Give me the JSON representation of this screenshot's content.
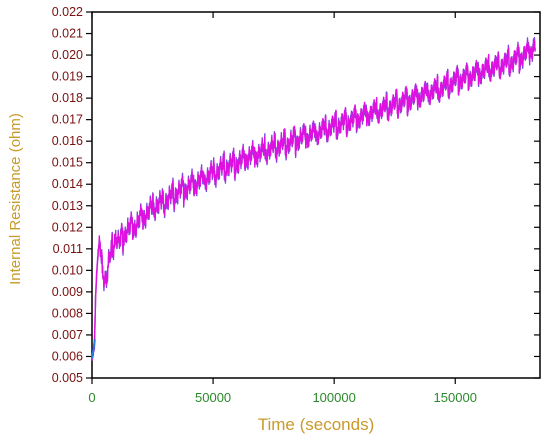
{
  "chart_data": {
    "type": "line",
    "title": "",
    "xlabel": "Time (seconds)",
    "ylabel": "Internal Resistance (ohm)",
    "xlim": [
      0,
      185000
    ],
    "ylim": [
      0.005,
      0.022
    ],
    "x_ticks": [
      0,
      50000,
      100000,
      150000
    ],
    "x_tick_labels": [
      "0",
      "50000",
      "100000",
      "150000"
    ],
    "y_ticks": [
      0.005,
      0.006,
      0.007,
      0.008,
      0.009,
      0.01,
      0.011,
      0.012,
      0.013,
      0.014,
      0.015,
      0.016,
      0.017,
      0.018,
      0.019,
      0.02,
      0.021,
      0.022
    ],
    "y_tick_labels": [
      "0.005",
      "0.006",
      "0.007",
      "0.008",
      "0.009",
      "0.010",
      "0.011",
      "0.012",
      "0.013",
      "0.014",
      "0.015",
      "0.016",
      "0.017",
      "0.018",
      "0.019",
      "0.020",
      "0.021",
      "0.022"
    ],
    "grid": false,
    "legend": "none",
    "series": [
      {
        "color": "#e010e0",
        "shadow_color": "#7a4dd8",
        "x": [
          0,
          500,
          1000,
          1500,
          2000,
          2500,
          3000,
          3500,
          4000,
          5000,
          6000,
          7000,
          8000,
          9000,
          10000,
          11000,
          12000,
          14000,
          16000,
          18000,
          20000,
          23000,
          26000,
          30000,
          35000,
          40000,
          45000,
          50000,
          55000,
          60000,
          65000,
          70000,
          75000,
          80000,
          85000,
          90000,
          95000,
          100000,
          105000,
          110000,
          115000,
          120000,
          125000,
          130000,
          135000,
          140000,
          145000,
          150000,
          155000,
          160000,
          165000,
          170000,
          175000,
          180000,
          183000
        ],
        "y": [
          0.0059,
          0.0062,
          0.0066,
          0.0088,
          0.01,
          0.0108,
          0.0112,
          0.0108,
          0.0103,
          0.0098,
          0.0096,
          0.0104,
          0.0108,
          0.0114,
          0.0116,
          0.0112,
          0.0114,
          0.0118,
          0.012,
          0.0121,
          0.0124,
          0.0127,
          0.013,
          0.0132,
          0.0136,
          0.0139,
          0.0142,
          0.0145,
          0.0148,
          0.015,
          0.0153,
          0.0155,
          0.0157,
          0.0159,
          0.0161,
          0.0163,
          0.0165,
          0.0167,
          0.0169,
          0.0171,
          0.0173,
          0.0175,
          0.0177,
          0.0179,
          0.0181,
          0.0183,
          0.0185,
          0.0188,
          0.019,
          0.0192,
          0.0194,
          0.0196,
          0.0198,
          0.0201,
          0.0205
        ]
      }
    ]
  }
}
